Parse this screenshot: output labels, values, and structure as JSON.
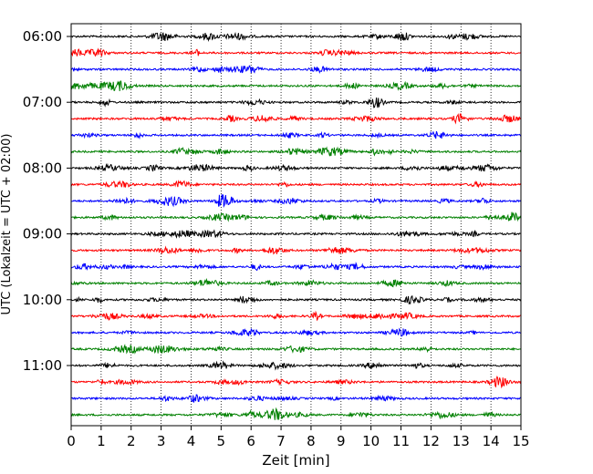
{
  "chart_data": {
    "type": "line",
    "xlabel": "Zeit  [min]",
    "ylabel": "UTC (Lokalzeit = UTC + 02:00)",
    "xlim": [
      0,
      15
    ],
    "x_ticks": [
      "0",
      "1",
      "2",
      "3",
      "4",
      "5",
      "6",
      "7",
      "8",
      "9",
      "10",
      "11",
      "12",
      "13",
      "14",
      "15"
    ],
    "y_ticks": [
      "06:00",
      "07:00",
      "08:00",
      "09:00",
      "10:00",
      "11:00"
    ],
    "grid": "vertical dotted at each minute",
    "trace_interval_minutes": 15,
    "trace_start": "06:00",
    "trace_count": 24,
    "trace_colors": [
      "#000000",
      "#ff0000",
      "#0000ff",
      "#008000"
    ]
  }
}
